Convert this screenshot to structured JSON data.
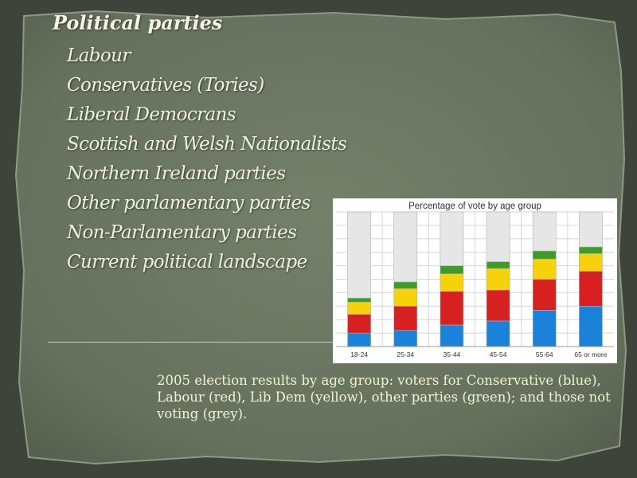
{
  "slide": {
    "title": "Political parties",
    "topics": [
      "Labour",
      "Conservatives (Tories)",
      "Liberal Democrans",
      "Scottish and Welsh Nationalists",
      "Northern Ireland parties",
      "Other parlamentary parties",
      "Non-Parlamentary parties",
      "Current political landscape"
    ],
    "caption": "2005 election results by age group: voters for Conservative (blue), Labour (red), Lib Dem (yellow), other parties (green); and those not voting (grey)."
  },
  "colors": {
    "background": "#5f6b57",
    "conservative": "#1a82d8",
    "labour": "#d82020",
    "lib_dem": "#f5d20a",
    "other": "#3c9c28",
    "not_voting": "#e6e6e6"
  },
  "chart_data": {
    "type": "bar",
    "stacked": true,
    "title": "Percentage of vote by age group",
    "xlabel": "",
    "ylabel": "",
    "categories": [
      "18-24",
      "25-34",
      "35-44",
      "45-54",
      "55-64",
      "65 or more"
    ],
    "series": [
      {
        "name": "Conservative",
        "color": "#1a82d8",
        "values": [
          10,
          12,
          16,
          19,
          27,
          30
        ]
      },
      {
        "name": "Labour",
        "color": "#d82020",
        "values": [
          14,
          18,
          25,
          23,
          23,
          26
        ]
      },
      {
        "name": "Lib Dem",
        "color": "#f5d20a",
        "values": [
          9,
          13,
          13,
          16,
          15,
          13
        ]
      },
      {
        "name": "Other",
        "color": "#3c9c28",
        "values": [
          3,
          5,
          6,
          5,
          6,
          5
        ]
      },
      {
        "name": "Not voting",
        "color": "#e6e6e6",
        "values": [
          64,
          52,
          40,
          37,
          29,
          26
        ]
      }
    ],
    "ylim": [
      0,
      100
    ],
    "grid": true,
    "legend": "none"
  }
}
